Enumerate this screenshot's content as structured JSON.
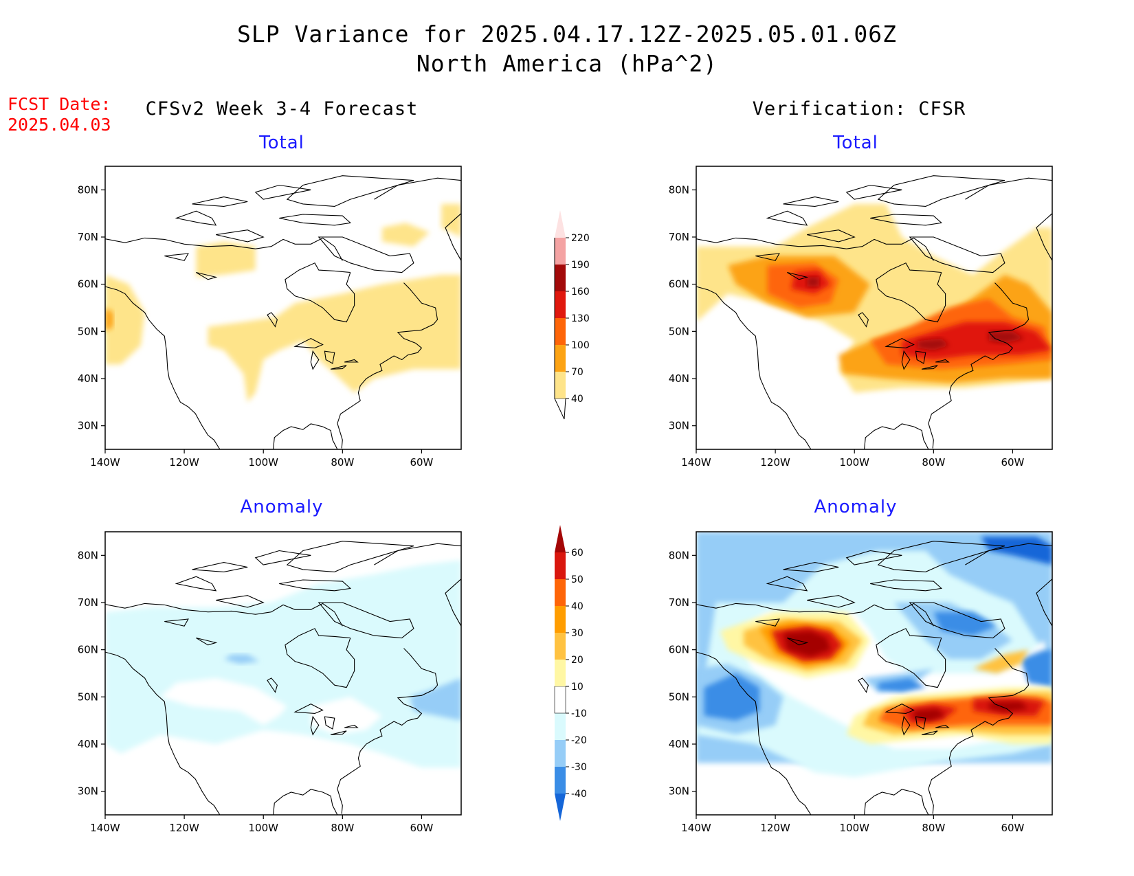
{
  "title_line1": "SLP Variance for 2025.04.17.12Z-2025.05.01.06Z",
  "title_line2": "North America (hPa^2)",
  "fcst_label": "FCST Date:",
  "fcst_date": "2025.04.03",
  "left_column_title": "CFSv2 Week 3-4 Forecast",
  "right_column_title": "Verification: CFSR",
  "panels": {
    "top_left": {
      "title": "Total"
    },
    "top_right": {
      "title": "Total"
    },
    "bottom_left": {
      "title": "Anomaly"
    },
    "bottom_right": {
      "title": "Anomaly"
    }
  },
  "axes": {
    "lon_labels": [
      "140W",
      "120W",
      "100W",
      "80W",
      "60W"
    ],
    "lat_labels": [
      "80N",
      "70N",
      "60N",
      "50N",
      "40N",
      "30N"
    ],
    "lon_range": [
      -140,
      -50
    ],
    "lat_range": [
      25,
      85
    ]
  },
  "total_colorbar": {
    "labels": [
      "40",
      "70",
      "100",
      "130",
      "160",
      "190",
      "220"
    ],
    "colors": [
      "#fee48a",
      "#fca314",
      "#fe6508",
      "#e0180e",
      "#a30a0a",
      "#f4a3a3",
      "#fde2e2"
    ]
  },
  "anomaly_colorbar": {
    "labels": [
      "-40",
      "-30",
      "-20",
      "-10",
      "10",
      "20",
      "30",
      "40",
      "50",
      "60"
    ],
    "colors": [
      "#1566d8",
      "#3a8de6",
      "#96cdf7",
      "#dafafd",
      "#ffffff",
      "#fff7a4",
      "#ffc241",
      "#ff9d00",
      "#fe6508",
      "#d9170e",
      "#a40606"
    ]
  }
}
